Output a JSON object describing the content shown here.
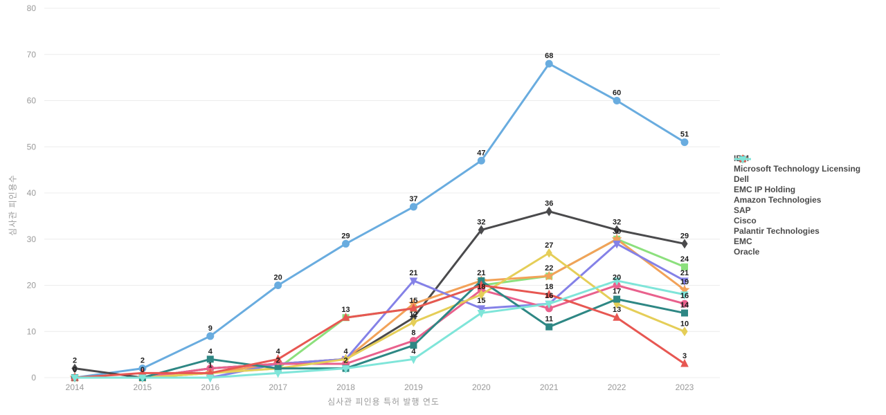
{
  "chart_data": {
    "type": "line",
    "title": "",
    "xlabel": "심사관 피인용 특허 발행 연도",
    "ylabel": "심사관 피인용수",
    "x": [
      2014,
      2015,
      2016,
      2017,
      2018,
      2019,
      2020,
      2021,
      2022,
      2023
    ],
    "ylim": [
      0,
      80
    ],
    "ytick_step": 10,
    "grid": true,
    "legend_position": "right",
    "series": [
      {
        "name": "IBM",
        "color": "#69acdf",
        "marker": "circle",
        "values": [
          0,
          2,
          9,
          20,
          29,
          37,
          47,
          68,
          60,
          51
        ],
        "labels": [
          "0",
          "2",
          "9",
          "20",
          "29",
          "37",
          "47",
          "68",
          "60",
          "51"
        ]
      },
      {
        "name": "Microsoft Technology Licensing",
        "color": "#4a4a4c",
        "marker": "diamond",
        "values": [
          2,
          0,
          2,
          3,
          4,
          13,
          32,
          36,
          32,
          29
        ],
        "labels": [
          "2",
          "0",
          null,
          null,
          null,
          null,
          "32",
          "36",
          "32",
          "29"
        ]
      },
      {
        "name": "Dell",
        "color": "#8ce07d",
        "marker": "square",
        "values": [
          0,
          0,
          1,
          2,
          13,
          15,
          20,
          22,
          30,
          24
        ],
        "labels": [
          null,
          null,
          null,
          null,
          null,
          null,
          null,
          null,
          "30",
          "24"
        ]
      },
      {
        "name": "EMC IP Holding",
        "color": "#f2a259",
        "marker": "star",
        "values": [
          0,
          0,
          1,
          3,
          4,
          16,
          21,
          22,
          30,
          19
        ],
        "labels": [
          null,
          null,
          null,
          null,
          null,
          null,
          null,
          "22",
          null,
          "19"
        ]
      },
      {
        "name": "Amazon Technologies",
        "color": "#8481e7",
        "marker": "triangle-down",
        "values": [
          0,
          0,
          0,
          3,
          4,
          21,
          15,
          16,
          29,
          21
        ],
        "labels": [
          null,
          null,
          null,
          null,
          "4",
          "21",
          "15",
          null,
          null,
          "21"
        ]
      },
      {
        "name": "SAP",
        "color": "#e9618d",
        "marker": "circle",
        "values": [
          0,
          0,
          2,
          3,
          3,
          8,
          19,
          15,
          20,
          16
        ],
        "labels": [
          null,
          null,
          null,
          null,
          null,
          "8",
          null,
          null,
          "20",
          "16"
        ]
      },
      {
        "name": "Cisco",
        "color": "#e5ce58",
        "marker": "diamond",
        "values": [
          0,
          0,
          1,
          2,
          4,
          12,
          18,
          27,
          16,
          10
        ],
        "labels": [
          null,
          null,
          null,
          null,
          null,
          "12",
          "18",
          "27",
          null,
          "10"
        ]
      },
      {
        "name": "Palantir Technologies",
        "color": "#2e8784",
        "marker": "square",
        "values": [
          0,
          0,
          4,
          2,
          2,
          7,
          21,
          11,
          17,
          14
        ],
        "labels": [
          null,
          null,
          "4",
          "2",
          "2",
          null,
          "21",
          "11",
          "17",
          "14"
        ]
      },
      {
        "name": "EMC",
        "color": "#e75752",
        "marker": "triangle-up",
        "values": [
          0,
          1,
          1,
          4,
          13,
          15,
          20,
          18,
          13,
          3
        ],
        "labels": [
          null,
          null,
          "1",
          "4",
          "13",
          "15",
          null,
          "18",
          "13",
          "3"
        ]
      },
      {
        "name": "Oracle",
        "color": "#7fe5d9",
        "marker": "triangle-down",
        "values": [
          0,
          0,
          0,
          1,
          2,
          4,
          14,
          16,
          21,
          18
        ],
        "labels": [
          null,
          null,
          null,
          null,
          null,
          "4",
          null,
          "16",
          null,
          null
        ]
      }
    ]
  },
  "style": {
    "grid_color": "#ececec",
    "tick_color": "#999999",
    "data_label_color": "#1d1d1d"
  }
}
